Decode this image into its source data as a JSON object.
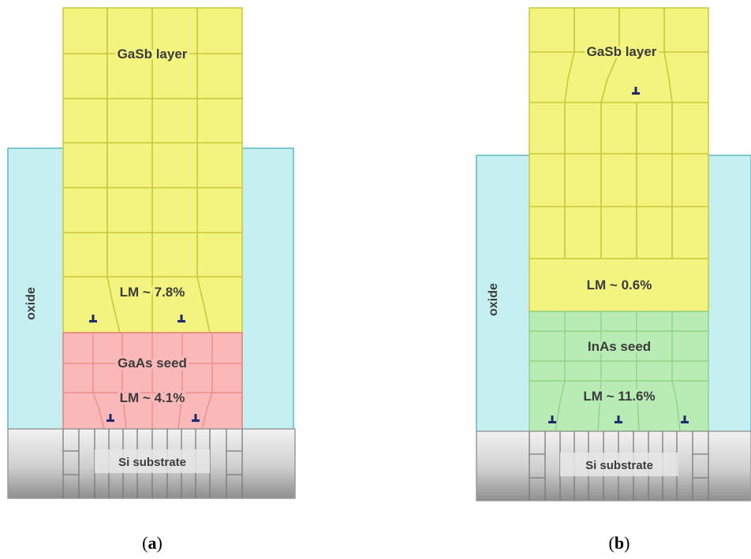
{
  "panels": [
    {
      "id": "a",
      "caption_open": "(",
      "caption_letter": "a",
      "caption_close": ")",
      "oxide_label": "oxide",
      "top_layer_label": "GaSb layer",
      "top_lm_label": "LM ~ 7.8%",
      "seed_label": "GaAs seed",
      "seed_lm_label": "LM ~ 4.1%",
      "substrate_label": "Si substrate"
    },
    {
      "id": "b",
      "caption_open": "(",
      "caption_letter": "b",
      "caption_close": ")",
      "oxide_label": "oxide",
      "top_layer_label": "GaSb layer",
      "top_lm_label": "LM ~ 0.6%",
      "seed_label": "InAs seed",
      "seed_lm_label": "LM ~ 11.6%",
      "substrate_label": "Si substrate"
    }
  ],
  "colors": {
    "oxide_fill": "#c6eff2",
    "oxide_stroke": "#5fb8c4",
    "gasb_fill": "#f3f37f",
    "gasb_stroke": "#c8c83a",
    "gaas_fill": "#fbb8b8",
    "gaas_stroke": "#e87c7c",
    "inas_fill": "#b9ebb4",
    "inas_stroke": "#8fd487",
    "substrate_top": "#f2f2f2",
    "substrate_bottom": "#8e8e8e",
    "dislocation": "#1e2a6e"
  }
}
